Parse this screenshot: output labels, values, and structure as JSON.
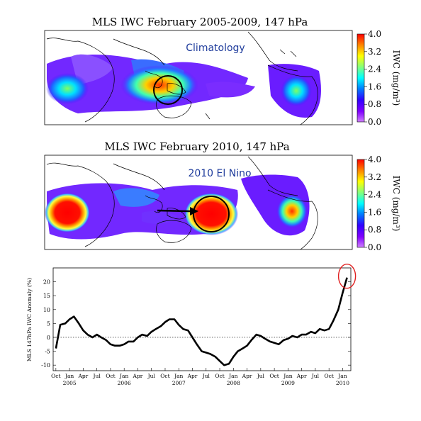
{
  "chart_data": [
    {
      "type": "heatmap",
      "title": "MLS IWC  February 2005-2009,  147 hPa",
      "annotation": "Climatology",
      "colorbar": {
        "label": "IWC (mg/m³)",
        "ticks": [
          "4.0",
          "3.2",
          "2.4",
          "1.6",
          "0.8",
          "0.0"
        ],
        "range": [
          0.0,
          4.0
        ],
        "colors": [
          "#ff0000",
          "#ff8000",
          "#ffff00",
          "#80ff80",
          "#00ffff",
          "#0080ff",
          "#3000ff",
          "#8000ff",
          "#d080ff"
        ]
      }
    },
    {
      "type": "heatmap",
      "title": "MLS IWC  February 2010,  147 hPa",
      "annotation": "2010 El Nino",
      "colorbar": {
        "label": "IWC (mg/m³)",
        "ticks": [
          "4.0",
          "3.2",
          "2.4",
          "1.6",
          "0.8",
          "0.0"
        ],
        "range": [
          0.0,
          4.0
        ],
        "colors": [
          "#ff0000",
          "#ff8000",
          "#ffff00",
          "#80ff80",
          "#00ffff",
          "#0080ff",
          "#3000ff",
          "#8000ff",
          "#d080ff"
        ]
      }
    },
    {
      "type": "line",
      "ylabel": "MLS  147hPa  IWC Anomaly (%)",
      "ylim": [
        -12,
        25
      ],
      "yticks": [
        20,
        15,
        10,
        5,
        0,
        -5,
        -10
      ],
      "xlim": [
        2004.7,
        2010.15
      ],
      "month_ticks": [
        {
          "x": 2004.75,
          "label": "Oct"
        },
        {
          "x": 2005.0,
          "label": "Jan"
        },
        {
          "x": 2005.25,
          "label": "Apr"
        },
        {
          "x": 2005.5,
          "label": "Jul"
        },
        {
          "x": 2005.75,
          "label": "Oct"
        },
        {
          "x": 2006.0,
          "label": "Jan"
        },
        {
          "x": 2006.25,
          "label": "Apr"
        },
        {
          "x": 2006.5,
          "label": "Jul"
        },
        {
          "x": 2006.75,
          "label": "Oct"
        },
        {
          "x": 2007.0,
          "label": "Jan"
        },
        {
          "x": 2007.25,
          "label": "Apr"
        },
        {
          "x": 2007.5,
          "label": "Jul"
        },
        {
          "x": 2007.75,
          "label": "Oct"
        },
        {
          "x": 2008.0,
          "label": "Jan"
        },
        {
          "x": 2008.25,
          "label": "Apr"
        },
        {
          "x": 2008.5,
          "label": "Jul"
        },
        {
          "x": 2008.75,
          "label": "Oct"
        },
        {
          "x": 2009.0,
          "label": "Jan"
        },
        {
          "x": 2009.25,
          "label": "Apr"
        },
        {
          "x": 2009.5,
          "label": "Jul"
        },
        {
          "x": 2009.75,
          "label": "Oct"
        },
        {
          "x": 2010.0,
          "label": "Jan"
        }
      ],
      "year_ticks": [
        {
          "x": 2005.0,
          "label": "2005"
        },
        {
          "x": 2006.0,
          "label": "2006"
        },
        {
          "x": 2007.0,
          "label": "2007"
        },
        {
          "x": 2008.0,
          "label": "2008"
        },
        {
          "x": 2009.0,
          "label": "2009"
        },
        {
          "x": 2010.0,
          "label": "2010"
        }
      ],
      "series": [
        {
          "x": [
            2004.75,
            2004.83,
            2004.92,
            2005.0,
            2005.08,
            2005.17,
            2005.25,
            2005.33,
            2005.42,
            2005.5,
            2005.58,
            2005.67,
            2005.75,
            2005.83,
            2005.92,
            2006.0,
            2006.08,
            2006.17,
            2006.25,
            2006.33,
            2006.42,
            2006.5,
            2006.58,
            2006.67,
            2006.75,
            2006.83,
            2006.92,
            2007.0,
            2007.08,
            2007.17,
            2007.25,
            2007.33,
            2007.42,
            2007.5,
            2007.58,
            2007.67,
            2007.75,
            2007.83,
            2007.92,
            2008.0,
            2008.08,
            2008.17,
            2008.25,
            2008.33,
            2008.42,
            2008.5,
            2008.58,
            2008.67,
            2008.75,
            2008.83,
            2008.92,
            2009.0,
            2009.08,
            2009.17,
            2009.25,
            2009.33,
            2009.42,
            2009.5,
            2009.58,
            2009.67,
            2009.75,
            2009.83,
            2009.92,
            2010.0,
            2010.08
          ],
          "y": [
            -4,
            4.5,
            5,
            6.5,
            7.5,
            5,
            2.5,
            1,
            0,
            1,
            0,
            -1,
            -2.5,
            -3,
            -3,
            -2.5,
            -1.5,
            -1.5,
            0,
            1,
            0.5,
            2,
            3,
            4,
            5.5,
            6.5,
            6.5,
            4.5,
            3,
            2.5,
            0,
            -2.5,
            -5,
            -5.5,
            -6,
            -7,
            -8.5,
            -10,
            -9.5,
            -7,
            -5,
            -4,
            -3,
            -1,
            1,
            0.5,
            -0.5,
            -1.5,
            -2,
            -2.5,
            -1,
            -0.5,
            0.5,
            0,
            1,
            1,
            2,
            1.5,
            3,
            2.5,
            3,
            6,
            10,
            16,
            21.5
          ]
        }
      ]
    }
  ],
  "highlight": {
    "shape": "circle",
    "color": "#e02020"
  }
}
